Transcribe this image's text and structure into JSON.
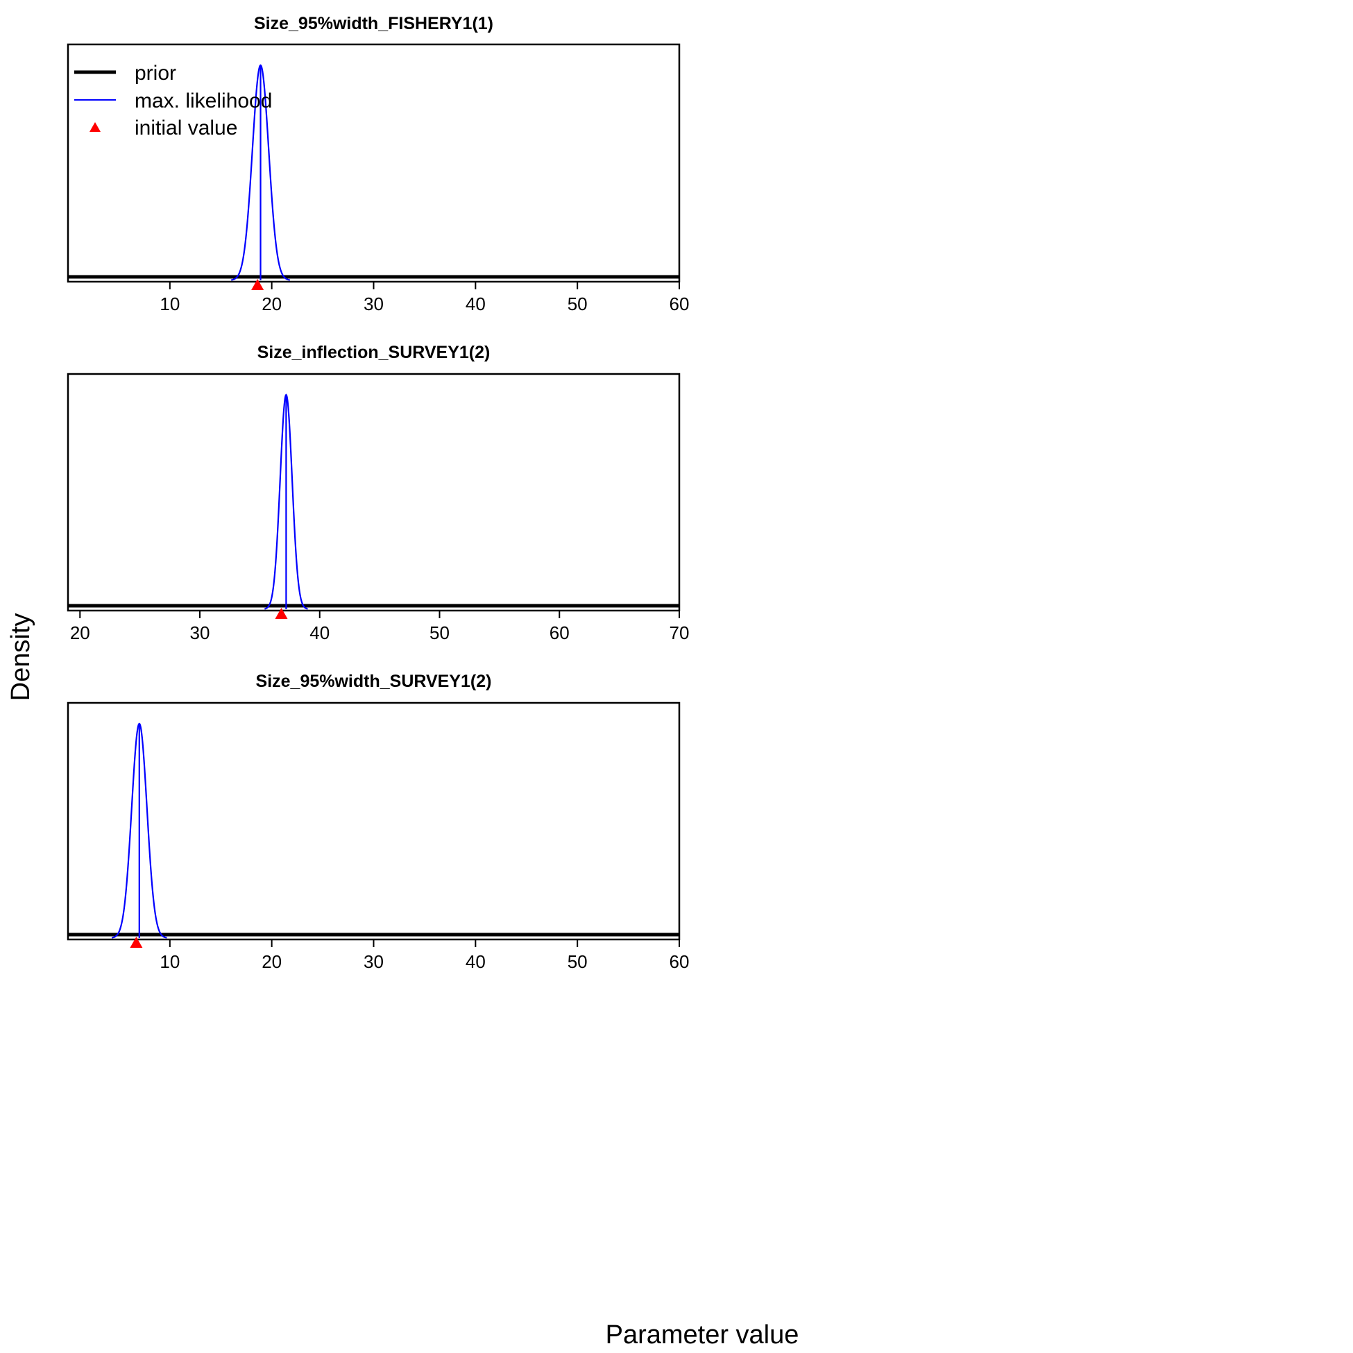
{
  "figure": {
    "xlabel": "Parameter value",
    "ylabel": "Density"
  },
  "legend": {
    "placement": "top-left of first panel",
    "items": [
      {
        "label": "prior",
        "color": "#000000",
        "kind": "thick-line"
      },
      {
        "label": "max. likelihood",
        "color": "#0000ff",
        "kind": "line"
      },
      {
        "label": "initial value",
        "color": "#ff0000",
        "kind": "triangle"
      }
    ]
  },
  "chart_data": [
    {
      "type": "line",
      "title": "Size_95%width_FISHERY1(1)",
      "xlim": [
        0,
        60
      ],
      "xticks": [
        10,
        20,
        30,
        40,
        50,
        60
      ],
      "series": [
        {
          "name": "prior",
          "kind": "flat",
          "color": "#000000"
        },
        {
          "name": "max. likelihood",
          "kind": "normal",
          "mean": 18.9,
          "sd": 0.8,
          "color": "#0000ff"
        },
        {
          "name": "initial value",
          "kind": "point",
          "x": 18.6,
          "color": "#ff0000"
        }
      ]
    },
    {
      "type": "line",
      "title": "Size_inflection_SURVEY1(2)",
      "xlim": [
        19,
        70
      ],
      "xticks": [
        20,
        30,
        40,
        50,
        60,
        70
      ],
      "series": [
        {
          "name": "prior",
          "kind": "flat",
          "color": "#000000"
        },
        {
          "name": "max. likelihood",
          "kind": "normal",
          "mean": 37.2,
          "sd": 0.5,
          "color": "#0000ff"
        },
        {
          "name": "initial value",
          "kind": "point",
          "x": 36.8,
          "color": "#ff0000"
        }
      ]
    },
    {
      "type": "line",
      "title": "Size_95%width_SURVEY1(2)",
      "xlim": [
        0,
        60
      ],
      "xticks": [
        10,
        20,
        30,
        40,
        50,
        60
      ],
      "series": [
        {
          "name": "prior",
          "kind": "flat",
          "color": "#000000"
        },
        {
          "name": "max. likelihood",
          "kind": "normal",
          "mean": 7.0,
          "sd": 0.75,
          "color": "#0000ff"
        },
        {
          "name": "initial value",
          "kind": "point",
          "x": 6.7,
          "color": "#ff0000"
        }
      ]
    }
  ]
}
